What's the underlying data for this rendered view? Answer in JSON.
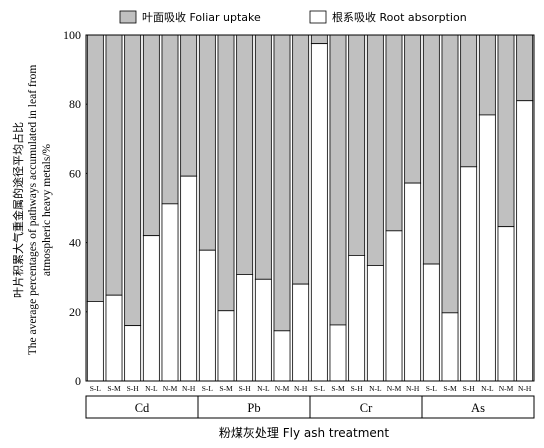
{
  "chart_data": {
    "type": "bar",
    "stacked": true,
    "legend": {
      "position": "top",
      "items": [
        {
          "label": "叶面吸收 Foliar uptake",
          "color": "#c0c0c0"
        },
        {
          "label": "根系吸收 Root absorption",
          "color": "#ffffff"
        }
      ]
    },
    "ylabel_lines": [
      "叶片积累大气重金属的途径平均占比",
      "The average percentages of pathways accumulated in leaf from",
      "atmospheric heavy metals/%"
    ],
    "xlabel": "粉煤灰处理 Fly ash treatment",
    "ylim": [
      0,
      100
    ],
    "yticks": [
      0,
      20,
      40,
      60,
      80,
      100
    ],
    "categories": [
      "S-L",
      "S-M",
      "S-H",
      "N-L",
      "N-M",
      "N-H"
    ],
    "groups": [
      {
        "name": "Cd",
        "root": [
          23,
          24.8,
          16,
          42,
          51.2,
          59.2
        ]
      },
      {
        "name": "Pb",
        "root": [
          37.8,
          20.3,
          30.8,
          29.4,
          14.5,
          28
        ]
      },
      {
        "name": "Cr",
        "root": [
          97.5,
          16.2,
          36.3,
          33.4,
          43.4,
          57.2
        ]
      },
      {
        "name": "As",
        "root": [
          33.8,
          19.7,
          61.9,
          76.9,
          44.6,
          81
        ]
      }
    ],
    "grid": false
  }
}
